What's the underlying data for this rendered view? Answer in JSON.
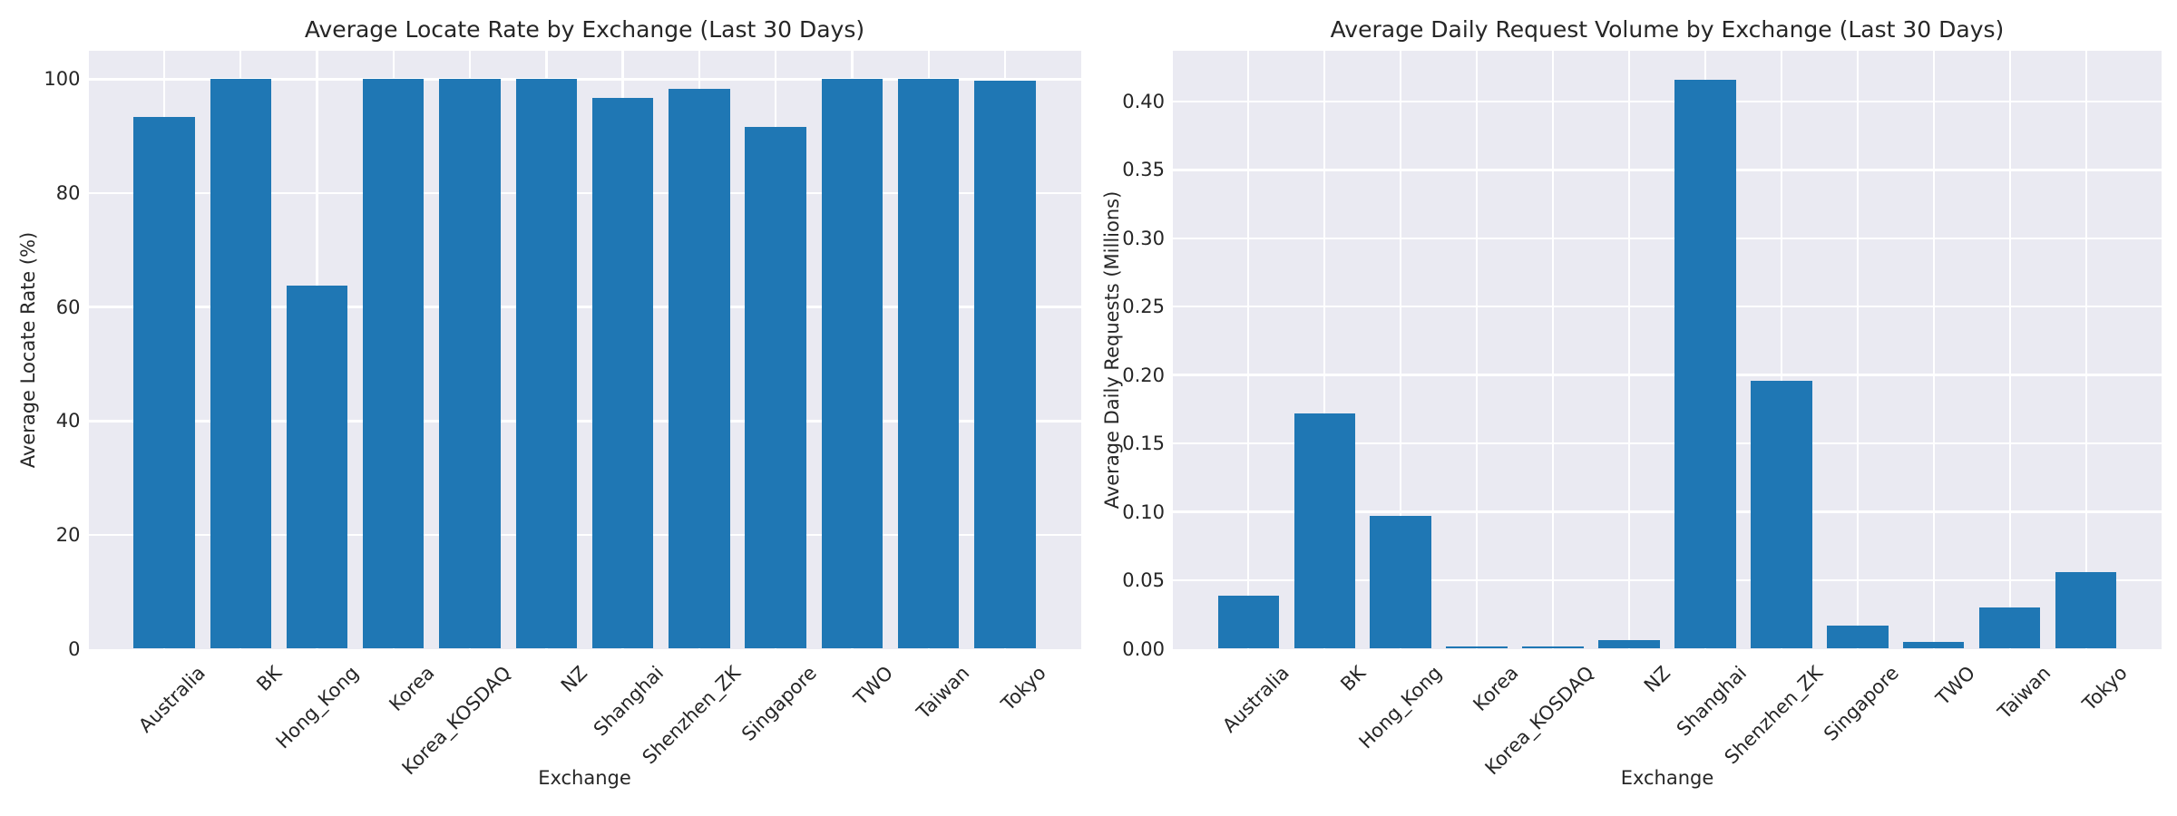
{
  "style": {
    "figure_background": "#ffffff",
    "axes_background": "#eaeaf2",
    "grid_color": "#ffffff",
    "bar_color": "#1f77b4",
    "text_color": "#262626"
  },
  "chart_data": [
    {
      "type": "bar",
      "title": "Average Locate Rate by Exchange (Last 30 Days)",
      "xlabel": "Exchange",
      "ylabel": "Average Locate Rate (%)",
      "categories": [
        "Australia",
        "BK",
        "Hong_Kong",
        "Korea",
        "Korea_KOSDAQ",
        "NZ",
        "Shanghai",
        "Shenzhen_ZK",
        "Singapore",
        "TWO",
        "Taiwan",
        "Tokyo"
      ],
      "values": [
        93.3,
        100,
        63.7,
        100,
        100,
        100,
        96.8,
        98.3,
        91.6,
        100,
        100,
        99.8
      ],
      "ylim": [
        0,
        105
      ],
      "yticks": [
        {
          "value": 0,
          "label": "0"
        },
        {
          "value": 20,
          "label": "20"
        },
        {
          "value": 40,
          "label": "40"
        },
        {
          "value": 60,
          "label": "60"
        },
        {
          "value": 80,
          "label": "80"
        },
        {
          "value": 100,
          "label": "100"
        }
      ],
      "grid": true,
      "legend": null
    },
    {
      "type": "bar",
      "title": "Average Daily Request Volume by Exchange (Last 30 Days)",
      "xlabel": "Exchange",
      "ylabel": "Average Daily Requests (Millions)",
      "categories": [
        "Australia",
        "BK",
        "Hong_Kong",
        "Korea",
        "Korea_KOSDAQ",
        "NZ",
        "Shanghai",
        "Shenzhen_ZK",
        "Singapore",
        "TWO",
        "Taiwan",
        "Tokyo"
      ],
      "values": [
        0.039,
        0.172,
        0.097,
        0.0017,
        0.0017,
        0.006,
        0.416,
        0.196,
        0.017,
        0.005,
        0.03,
        0.056
      ],
      "ylim": [
        0,
        0.437
      ],
      "yticks": [
        {
          "value": 0.0,
          "label": "0.00"
        },
        {
          "value": 0.05,
          "label": "0.05"
        },
        {
          "value": 0.1,
          "label": "0.10"
        },
        {
          "value": 0.15,
          "label": "0.15"
        },
        {
          "value": 0.2,
          "label": "0.20"
        },
        {
          "value": 0.25,
          "label": "0.25"
        },
        {
          "value": 0.3,
          "label": "0.30"
        },
        {
          "value": 0.35,
          "label": "0.35"
        },
        {
          "value": 0.4,
          "label": "0.40"
        }
      ],
      "grid": true,
      "legend": null
    }
  ]
}
